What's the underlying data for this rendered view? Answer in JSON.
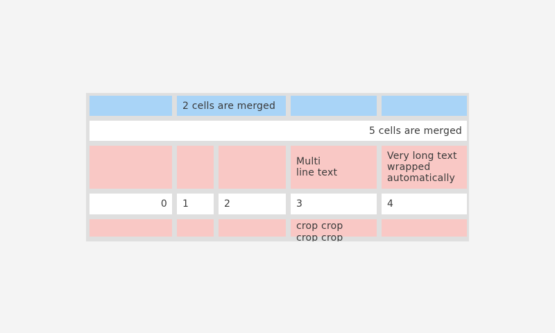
{
  "page": {
    "background_color": "#f4f4f4"
  },
  "table_widget": {
    "colors": {
      "frame": "#dfdfdf",
      "blue_cell": "#a9d4f7",
      "pink_cell": "#f9c8c5",
      "white_cell": "#ffffff",
      "text": "#3a3a3a"
    },
    "row1": {
      "merged_cell_label": "2 cells are merged"
    },
    "row2": {
      "merged_cell_label": "5 cells are merged"
    },
    "row3": {
      "multiline_cell_label": "Multi\nline text",
      "wrapped_cell_label": "Very long text wrapped automatically"
    },
    "row4": {
      "c1": "0",
      "c2": "1",
      "c3": "2",
      "c4": "3",
      "c5": "4"
    },
    "row5": {
      "cropped_cell_label": "crop crop crop crop"
    }
  }
}
